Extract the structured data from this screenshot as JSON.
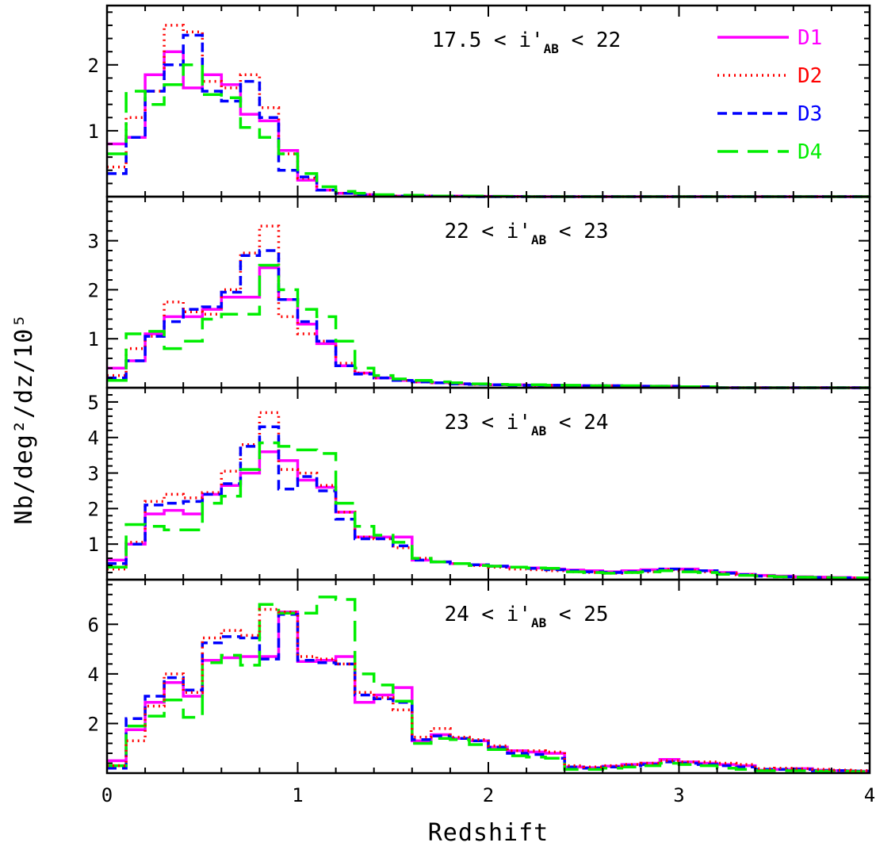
{
  "chart_data": {
    "type": "line",
    "step": true,
    "xlabel": "Redshift",
    "ylabel": "Nb/deg²/dz/10⁵",
    "xlim": [
      0,
      4
    ],
    "x_ticks": [
      "0",
      "1",
      "2",
      "3",
      "4"
    ],
    "x_tick_values": [
      0,
      1,
      2,
      3,
      4
    ],
    "bin_edges": [
      0,
      0.1,
      0.2,
      0.3,
      0.4,
      0.5,
      0.6,
      0.7,
      0.8,
      0.9,
      1.0,
      1.1,
      1.2,
      1.3,
      1.4,
      1.5,
      1.6,
      1.7,
      1.8,
      1.9,
      2.0,
      2.1,
      2.2,
      2.3,
      2.4,
      2.5,
      2.6,
      2.7,
      2.8,
      2.9,
      3.0,
      3.1,
      3.2,
      3.3,
      3.4,
      3.5,
      3.6,
      3.7,
      3.8,
      3.9,
      4.0
    ],
    "legend": [
      {
        "name": "D1",
        "color": "#ff00ff",
        "dash": "solid"
      },
      {
        "name": "D2",
        "color": "#ff0000",
        "dash": "dotted"
      },
      {
        "name": "D3",
        "color": "#0000ff",
        "dash": "short-dash"
      },
      {
        "name": "D4",
        "color": "#00ee00",
        "dash": "long-dash"
      }
    ],
    "legend_position": "top-right",
    "panels": [
      {
        "label": "17.5 <  i'AB < 22",
        "ylim": [
          0,
          2.9
        ],
        "y_ticks": [
          "1",
          "2"
        ],
        "y_tick_values": [
          1,
          2
        ],
        "series": [
          {
            "name": "D1",
            "values": [
              0.8,
              0.9,
              1.85,
              2.2,
              1.65,
              1.85,
              1.7,
              1.25,
              1.15,
              0.7,
              0.25,
              0.1,
              0.05,
              0.03,
              0.02,
              0.01,
              0.01,
              0.01,
              0.01,
              0.005,
              0.005,
              0.003,
              0,
              0,
              0,
              0,
              0,
              0,
              0,
              0,
              0,
              0,
              0,
              0,
              0,
              0,
              0,
              0,
              0,
              0
            ]
          },
          {
            "name": "D2",
            "values": [
              0.45,
              1.2,
              1.6,
              2.6,
              2.5,
              1.75,
              1.65,
              1.85,
              1.35,
              0.65,
              0.28,
              0.1,
              0.05,
              0.03,
              0.02,
              0.01,
              0.01,
              0.01,
              0.005,
              0.005,
              0,
              0,
              0,
              0,
              0,
              0,
              0,
              0,
              0,
              0,
              0,
              0,
              0,
              0,
              0,
              0,
              0,
              0,
              0,
              0
            ]
          },
          {
            "name": "D3",
            "values": [
              0.35,
              0.9,
              1.6,
              2.0,
              2.45,
              1.6,
              1.45,
              1.75,
              1.2,
              0.4,
              0.3,
              0.1,
              0.05,
              0.03,
              0.02,
              0.01,
              0.01,
              0.01,
              0.005,
              0,
              0,
              0,
              0,
              0,
              0,
              0,
              0,
              0,
              0,
              0,
              0,
              0,
              0,
              0,
              0,
              0,
              0,
              0,
              0,
              0
            ]
          },
          {
            "name": "D4",
            "values": [
              0.65,
              1.6,
              1.4,
              1.7,
              2.0,
              1.55,
              1.5,
              1.05,
              0.9,
              0.65,
              0.35,
              0.15,
              0.08,
              0.05,
              0.03,
              0.02,
              0.02,
              0.01,
              0.01,
              0.01,
              0.005,
              0.005,
              0,
              0,
              0,
              0,
              0,
              0,
              0,
              0,
              0,
              0,
              0,
              0,
              0,
              0,
              0,
              0,
              0,
              0
            ]
          }
        ]
      },
      {
        "label": "22 <  i'AB < 23",
        "ylim": [
          0,
          3.9
        ],
        "y_ticks": [
          "1",
          "2",
          "3"
        ],
        "y_tick_values": [
          1,
          2,
          3
        ],
        "series": [
          {
            "name": "D1",
            "values": [
              0.4,
              0.55,
              1.1,
              1.45,
              1.45,
              1.6,
              1.85,
              1.85,
              2.45,
              1.8,
              1.3,
              0.9,
              0.45,
              0.3,
              0.2,
              0.15,
              0.12,
              0.1,
              0.08,
              0.07,
              0.06,
              0.06,
              0.05,
              0.05,
              0.04,
              0.04,
              0.04,
              0.03,
              0.03,
              0.03,
              0.02,
              0.02,
              0,
              0,
              0,
              0,
              0,
              0,
              0,
              0
            ]
          },
          {
            "name": "D2",
            "values": [
              0.25,
              0.8,
              1.05,
              1.75,
              1.55,
              1.5,
              2.0,
              2.75,
              3.3,
              1.45,
              1.1,
              0.95,
              0.5,
              0.3,
              0.2,
              0.15,
              0.12,
              0.1,
              0.08,
              0.07,
              0.06,
              0.06,
              0.05,
              0.05,
              0.04,
              0.04,
              0.04,
              0.03,
              0.03,
              0.03,
              0.02,
              0.02,
              0,
              0,
              0,
              0,
              0,
              0,
              0,
              0
            ]
          },
          {
            "name": "D3",
            "values": [
              0.2,
              0.55,
              1.05,
              1.35,
              1.6,
              1.65,
              1.95,
              2.7,
              2.8,
              1.8,
              1.35,
              0.95,
              0.45,
              0.28,
              0.2,
              0.15,
              0.12,
              0.1,
              0.08,
              0.07,
              0.06,
              0.05,
              0.05,
              0.05,
              0.04,
              0.04,
              0.04,
              0.03,
              0.03,
              0.03,
              0.02,
              0.02,
              0,
              0,
              0,
              0,
              0,
              0,
              0,
              0
            ]
          },
          {
            "name": "D4",
            "values": [
              0.15,
              1.1,
              1.15,
              0.8,
              0.95,
              1.4,
              1.5,
              1.5,
              2.5,
              2.0,
              1.6,
              1.45,
              0.95,
              0.4,
              0.25,
              0.18,
              0.15,
              0.12,
              0.1,
              0.08,
              0.07,
              0.06,
              0.06,
              0.05,
              0.05,
              0.04,
              0.04,
              0.04,
              0.03,
              0.03,
              0.02,
              0.02,
              0,
              0,
              0,
              0,
              0,
              0,
              0,
              0
            ]
          }
        ]
      },
      {
        "label": "23 <  i'AB < 24",
        "ylim": [
          0,
          5.4
        ],
        "y_ticks": [
          "1",
          "2",
          "3",
          "4",
          "5"
        ],
        "y_tick_values": [
          1,
          2,
          3,
          4,
          5
        ],
        "series": [
          {
            "name": "D1",
            "values": [
              0.55,
              1.0,
              1.85,
              1.95,
              1.85,
              2.4,
              2.65,
              3.0,
              3.6,
              3.35,
              2.8,
              2.6,
              1.9,
              1.2,
              1.2,
              1.2,
              0.55,
              0.5,
              0.45,
              0.42,
              0.38,
              0.35,
              0.33,
              0.3,
              0.27,
              0.25,
              0.22,
              0.25,
              0.28,
              0.3,
              0.3,
              0.25,
              0.2,
              0.15,
              0.12,
              0.1,
              0.08,
              0.07,
              0.06,
              0.05
            ]
          },
          {
            "name": "D2",
            "values": [
              0.3,
              1.05,
              2.2,
              2.4,
              2.3,
              2.45,
              3.05,
              3.8,
              4.7,
              3.1,
              3.0,
              2.65,
              1.9,
              1.2,
              1.15,
              0.9,
              0.6,
              0.5,
              0.45,
              0.4,
              0.35,
              0.3,
              0.28,
              0.25,
              0.22,
              0.2,
              0.18,
              0.2,
              0.22,
              0.28,
              0.25,
              0.22,
              0.18,
              0.14,
              0.1,
              0.08,
              0.07,
              0.06,
              0.05,
              0.05
            ]
          },
          {
            "name": "D3",
            "values": [
              0.45,
              1.0,
              2.1,
              2.15,
              2.2,
              2.4,
              2.7,
              3.75,
              4.3,
              2.55,
              2.9,
              2.5,
              1.7,
              1.15,
              1.15,
              0.95,
              0.55,
              0.5,
              0.45,
              0.42,
              0.38,
              0.35,
              0.32,
              0.28,
              0.25,
              0.22,
              0.2,
              0.22,
              0.25,
              0.3,
              0.28,
              0.25,
              0.18,
              0.14,
              0.1,
              0.08,
              0.07,
              0.06,
              0.05,
              0.05
            ]
          },
          {
            "name": "D4",
            "values": [
              0.35,
              1.55,
              1.5,
              1.4,
              1.4,
              2.15,
              2.35,
              3.1,
              3.85,
              3.75,
              3.65,
              3.55,
              2.15,
              1.5,
              1.25,
              1.05,
              0.6,
              0.5,
              0.45,
              0.4,
              0.38,
              0.35,
              0.33,
              0.32,
              0.22,
              0.2,
              0.18,
              0.2,
              0.22,
              0.25,
              0.22,
              0.2,
              0.15,
              0.12,
              0.1,
              0.08,
              0.07,
              0.06,
              0.05,
              0.05
            ]
          }
        ]
      },
      {
        "label": "24 <  i'AB < 25",
        "ylim": [
          0,
          7.8
        ],
        "y_ticks": [
          "2",
          "4",
          "6"
        ],
        "y_tick_values": [
          2,
          4,
          6
        ],
        "series": [
          {
            "name": "D1",
            "values": [
              0.5,
              1.75,
              2.85,
              3.65,
              3.1,
              4.55,
              4.65,
              4.7,
              4.7,
              6.5,
              4.5,
              4.55,
              4.7,
              2.85,
              3.15,
              3.45,
              1.3,
              1.55,
              1.4,
              1.3,
              1.05,
              0.9,
              0.85,
              0.8,
              0.25,
              0.22,
              0.28,
              0.35,
              0.4,
              0.55,
              0.45,
              0.4,
              0.35,
              0.3,
              0.12,
              0.15,
              0.18,
              0.12,
              0.1,
              0.08
            ]
          },
          {
            "name": "D3",
            "values": [
              0.2,
              2.2,
              3.1,
              3.85,
              3.35,
              5.25,
              5.5,
              5.45,
              4.6,
              6.4,
              4.55,
              4.45,
              4.4,
              3.15,
              3.0,
              2.85,
              1.35,
              1.5,
              1.4,
              1.3,
              1.05,
              0.8,
              0.75,
              0.6,
              0.25,
              0.2,
              0.25,
              0.3,
              0.35,
              0.45,
              0.4,
              0.35,
              0.3,
              0.25,
              0.15,
              0.15,
              0.15,
              0.1,
              0.1,
              0.08
            ]
          },
          {
            "name": "D4",
            "values": [
              0.3,
              1.9,
              2.3,
              2.95,
              2.25,
              4.45,
              4.75,
              4.35,
              6.8,
              6.45,
              6.45,
              7.1,
              7.0,
              4.0,
              3.55,
              2.9,
              1.2,
              1.4,
              1.35,
              1.15,
              0.95,
              0.7,
              0.65,
              0.6,
              0.15,
              0.15,
              0.2,
              0.25,
              0.3,
              0.4,
              0.35,
              0.3,
              0.2,
              0.15,
              0.1,
              0.1,
              0.1,
              0.08,
              0.08,
              0.06
            ]
          },
          {
            "name": "D2",
            "values": [
              0.3,
              1.3,
              2.7,
              4.0,
              3.25,
              5.45,
              5.75,
              5.55,
              6.6,
              6.5,
              4.7,
              4.6,
              4.4,
              3.25,
              3.05,
              2.55,
              1.45,
              1.8,
              1.45,
              1.35,
              1.1,
              0.9,
              0.9,
              0.85,
              0.3,
              0.25,
              0.3,
              0.35,
              0.4,
              0.5,
              0.45,
              0.45,
              0.4,
              0.35,
              0.18,
              0.2,
              0.18,
              0.15,
              0.12,
              0.1
            ]
          }
        ]
      }
    ]
  }
}
